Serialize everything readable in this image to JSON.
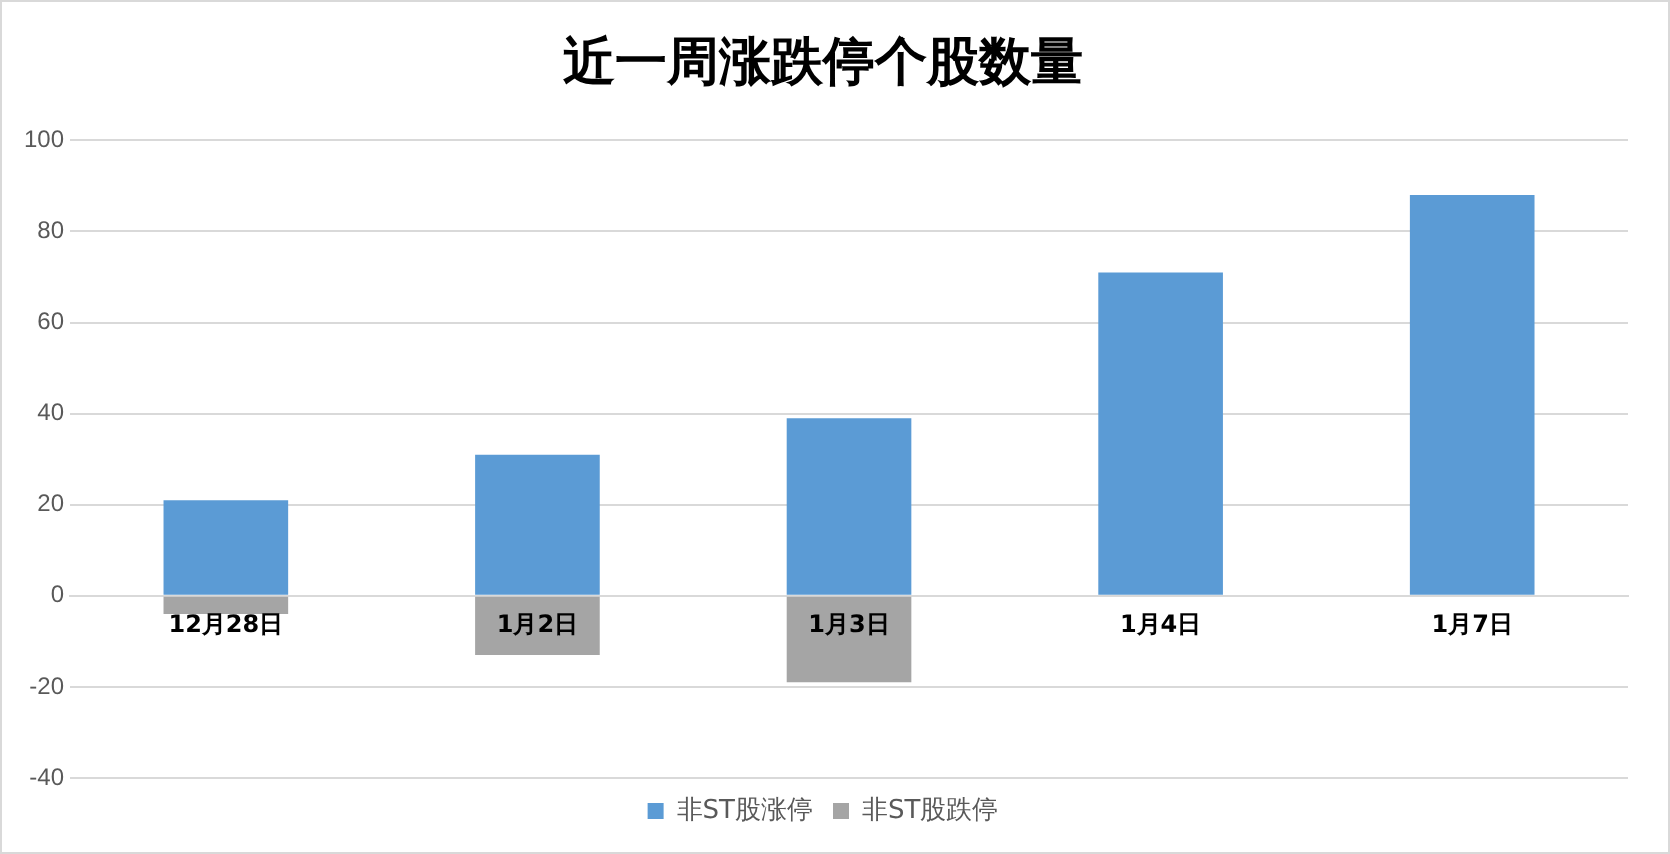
{
  "chart_data": {
    "type": "bar",
    "title": "近一周涨跌停个股数量",
    "categories": [
      "12月28日",
      "1月2日",
      "1月3日",
      "1月4日",
      "1月7日"
    ],
    "series": [
      {
        "name": "非ST股涨停",
        "color": "#5b9bd5",
        "values": [
          21,
          31,
          39,
          71,
          88
        ]
      },
      {
        "name": "非ST股跌停",
        "color": "#a5a5a5",
        "values": [
          -4,
          -13,
          -19,
          0,
          0
        ]
      }
    ],
    "stacked": true,
    "ylim": [
      -40,
      100
    ],
    "yticks": [
      -40,
      -20,
      0,
      20,
      40,
      60,
      80,
      100
    ],
    "grid": "y",
    "legend": "bottom"
  }
}
